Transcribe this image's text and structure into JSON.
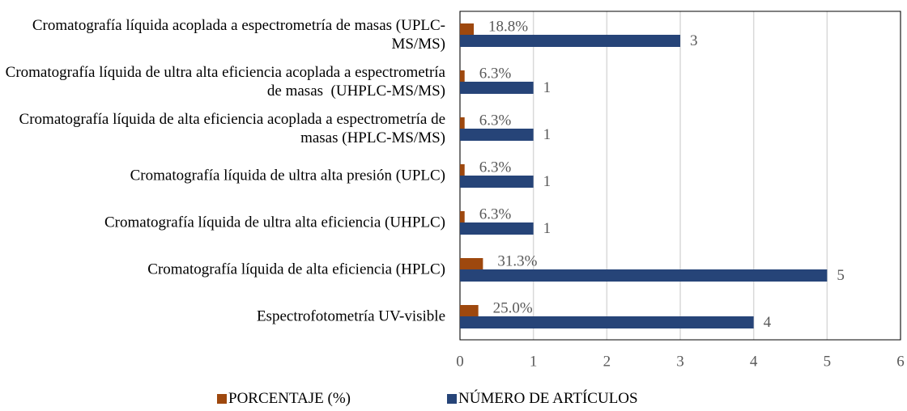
{
  "chart_data": {
    "type": "hbar",
    "categories": [
      "Cromatografía líquida acoplada a espectrometría de masas (UPLC-MS/MS)",
      "Cromatografía líquida de ultra alta eficiencia acoplada a espectrometría de masas  (UHPLC-MS/MS)",
      "Cromatografía líquida de alta eficiencia acoplada a espectrometría de masas (HPLC-MS/MS)",
      "Cromatografía líquida de ultra alta presión (UPLC)",
      "Cromatografía líquida de ultra alta eficiencia (UHPLC)",
      "Cromatografía líquida de alta eficiencia (HPLC)",
      "Espectrofotometría UV-visible"
    ],
    "series": [
      {
        "name": "PORCENTAJE (%)",
        "color": "#9e480e",
        "values": [
          0.188,
          0.063,
          0.063,
          0.063,
          0.063,
          0.313,
          0.25
        ],
        "value_labels": [
          "18.8%",
          "6.3%",
          "6.3%",
          "6.3%",
          "6.3%",
          "31.3%",
          "25.0%"
        ]
      },
      {
        "name": "NÚMERO DE ARTÍCULOS",
        "color": "#264478",
        "values": [
          3,
          1,
          1,
          1,
          1,
          5,
          4
        ]
      }
    ],
    "xlim": [
      0,
      6
    ],
    "xticks": [
      0,
      1,
      2,
      3,
      4,
      5,
      6
    ],
    "grid": true,
    "legend": "bottom"
  }
}
